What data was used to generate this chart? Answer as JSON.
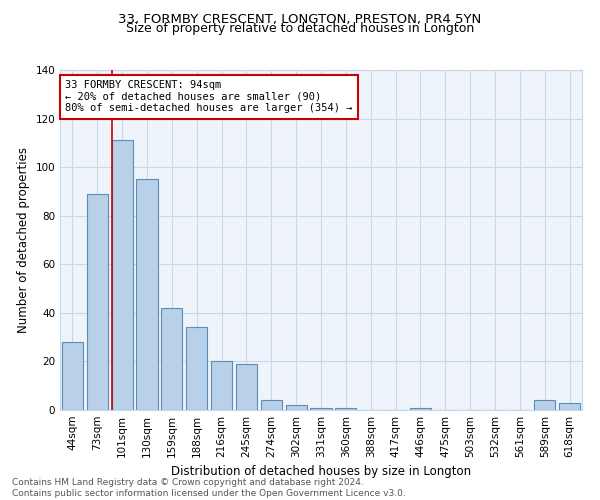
{
  "title1": "33, FORMBY CRESCENT, LONGTON, PRESTON, PR4 5YN",
  "title2": "Size of property relative to detached houses in Longton",
  "xlabel": "Distribution of detached houses by size in Longton",
  "ylabel": "Number of detached properties",
  "footer1": "Contains HM Land Registry data © Crown copyright and database right 2024.",
  "footer2": "Contains public sector information licensed under the Open Government Licence v3.0.",
  "categories": [
    "44sqm",
    "73sqm",
    "101sqm",
    "130sqm",
    "159sqm",
    "188sqm",
    "216sqm",
    "245sqm",
    "274sqm",
    "302sqm",
    "331sqm",
    "360sqm",
    "388sqm",
    "417sqm",
    "446sqm",
    "475sqm",
    "503sqm",
    "532sqm",
    "561sqm",
    "589sqm",
    "618sqm"
  ],
  "values": [
    28,
    89,
    111,
    95,
    42,
    34,
    20,
    19,
    4,
    2,
    1,
    1,
    0,
    0,
    1,
    0,
    0,
    0,
    0,
    4,
    3
  ],
  "bar_color": "#b8d0e8",
  "bar_edge_color": "#5b8db8",
  "grid_color": "#c8d8e8",
  "bg_color": "#eef4fa",
  "red_line_index": 2,
  "annotation_text": "33 FORMBY CRESCENT: 94sqm\n← 20% of detached houses are smaller (90)\n80% of semi-detached houses are larger (354) →",
  "annotation_box_color": "#cc0000",
  "ylim": [
    0,
    140
  ],
  "yticks": [
    0,
    20,
    40,
    60,
    80,
    100,
    120,
    140
  ],
  "title1_fontsize": 9.5,
  "title2_fontsize": 9,
  "xlabel_fontsize": 8.5,
  "ylabel_fontsize": 8.5,
  "tick_fontsize": 7.5,
  "annotation_fontsize": 7.5,
  "footer_fontsize": 6.5
}
